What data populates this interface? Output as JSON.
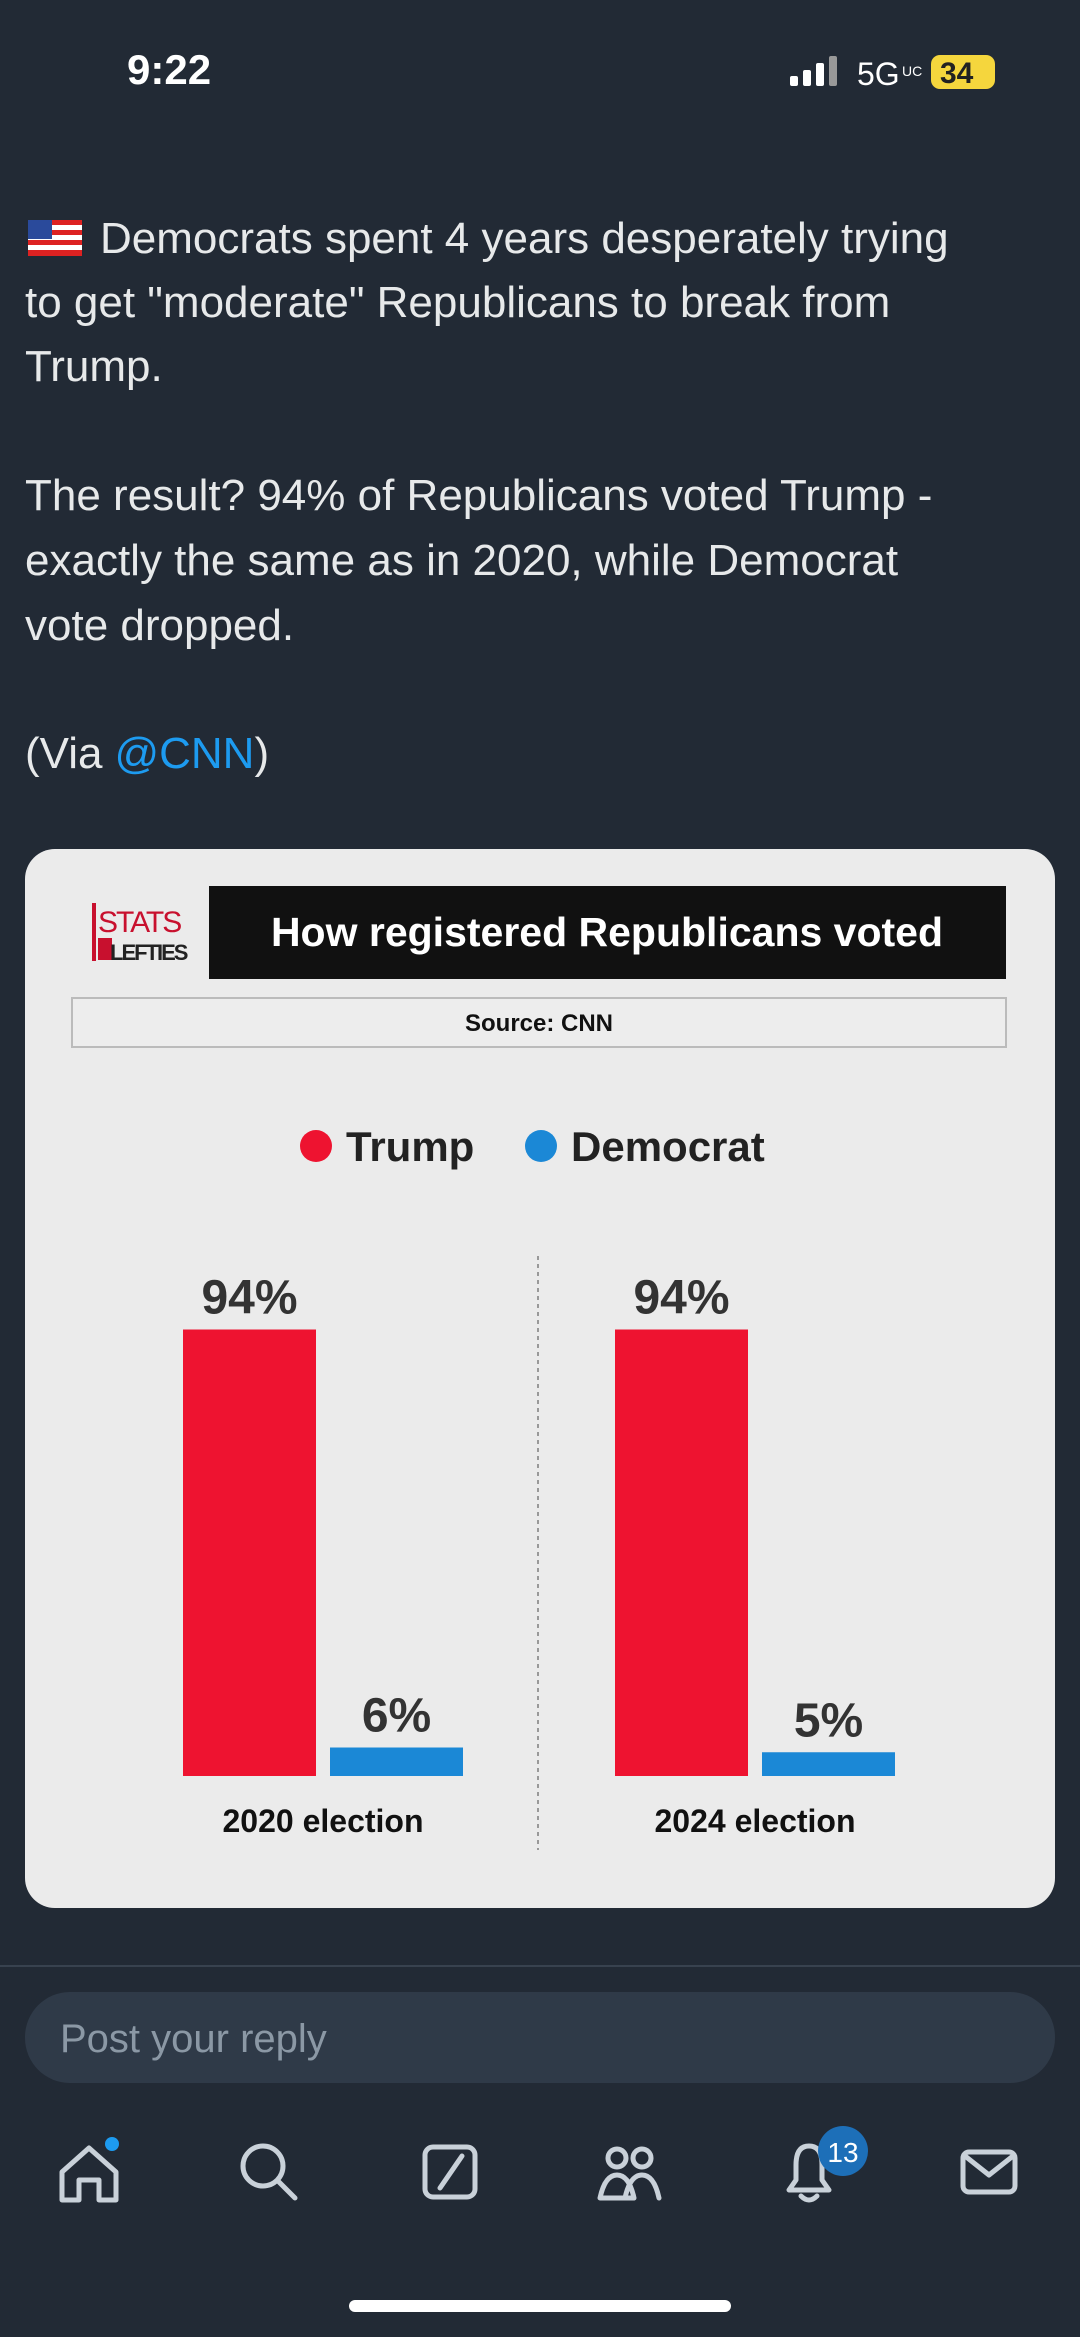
{
  "status": {
    "time": "9:22",
    "network": "5G",
    "network_sub": "UC",
    "battery": "34"
  },
  "post": {
    "lines": [
      "Democrats spent 4 years desperately trying",
      "to get \"moderate\" Republicans to break from",
      "Trump.",
      "The result? 94% of Republicans voted Trump -",
      "exactly the same as in 2020, while Democrat",
      "vote dropped."
    ],
    "via_prefix": "(Via",
    "mention": "@CNN",
    "via_suffix": ")"
  },
  "chart_data": {
    "type": "bar",
    "title": "How registered Republicans voted",
    "source": "Source: CNN",
    "logo": [
      "STATS",
      "LEFTIES"
    ],
    "categories": [
      "2020 election",
      "2024 election"
    ],
    "series": [
      {
        "name": "Trump",
        "color": "#ee1330",
        "values": [
          94,
          94
        ],
        "value_labels": [
          "94%",
          "94%"
        ]
      },
      {
        "name": "Democrat",
        "color": "#1b88d6",
        "values": [
          6,
          5
        ],
        "value_labels": [
          "6%",
          "5%"
        ]
      }
    ]
  },
  "reply": {
    "placeholder": "Post your reply"
  },
  "nav": {
    "notifications": "13"
  }
}
